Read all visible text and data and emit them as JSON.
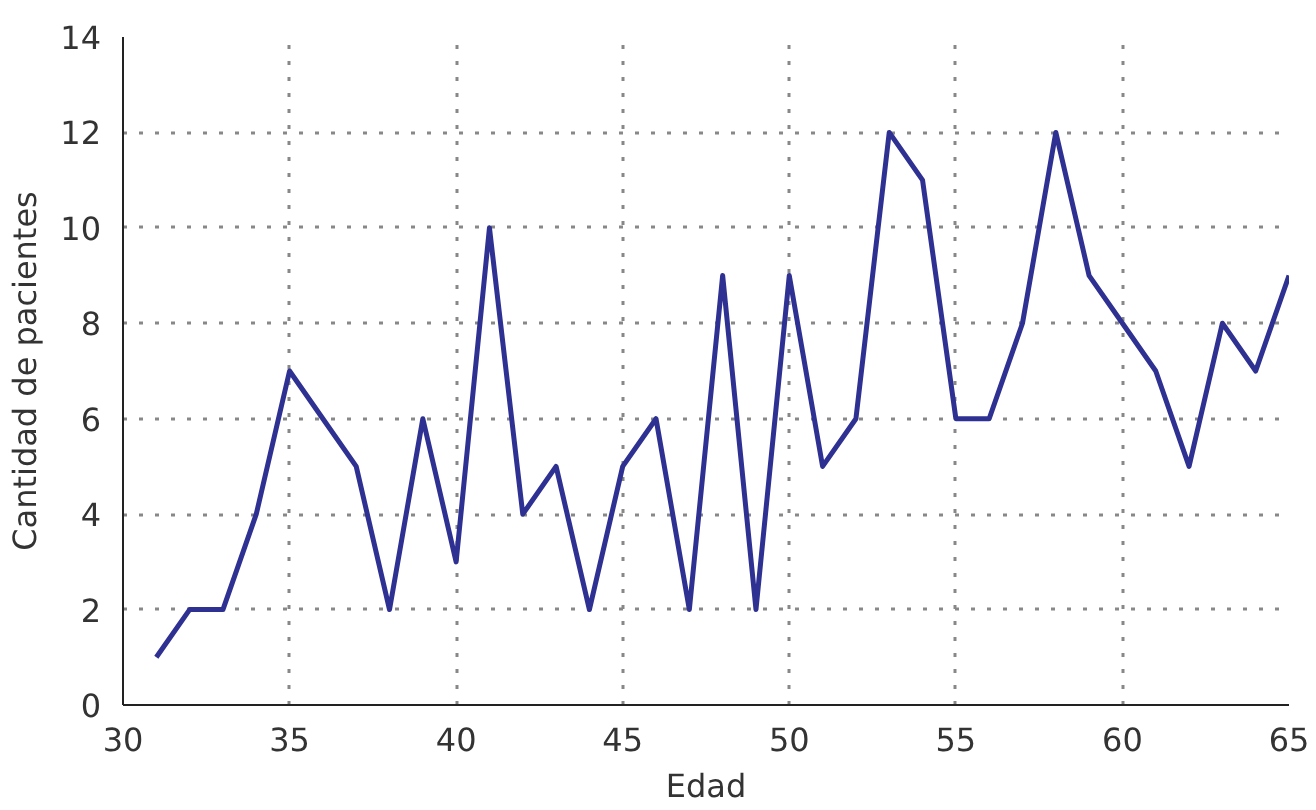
{
  "chart_data": {
    "type": "line",
    "xlabel": "Edad",
    "ylabel": "Cantidad de pacientes",
    "x": [
      31,
      32,
      33,
      34,
      35,
      36,
      37,
      38,
      39,
      40,
      41,
      42,
      43,
      44,
      45,
      46,
      47,
      48,
      49,
      50,
      51,
      52,
      53,
      54,
      55,
      56,
      57,
      58,
      59,
      60,
      61,
      62,
      63,
      64,
      65
    ],
    "series": [
      {
        "color": "#2e3192",
        "values": [
          1,
          2,
          2,
          4,
          7,
          6,
          5,
          2,
          6,
          3,
          10,
          4,
          5,
          2,
          5,
          6,
          2,
          9,
          2,
          9,
          5,
          6,
          12,
          11,
          6,
          6,
          8,
          12,
          9,
          8,
          7,
          5,
          8,
          7,
          9
        ]
      }
    ],
    "xlim": [
      30,
      65
    ],
    "ylim": [
      0,
      14
    ],
    "xticks": [
      30,
      35,
      40,
      45,
      50,
      55,
      60,
      65
    ],
    "yticks": [
      0,
      2,
      4,
      6,
      8,
      10,
      12,
      14
    ],
    "grid": true,
    "marker": "none",
    "line_style": "solid"
  }
}
